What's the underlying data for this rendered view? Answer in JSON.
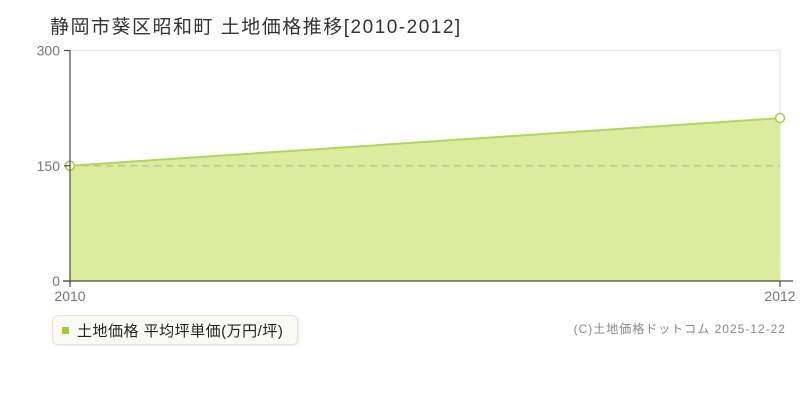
{
  "title": "静岡市葵区昭和町 土地価格推移[2010-2012]",
  "legend": {
    "label": "土地価格 平均坪単価(万円/坪)",
    "swatch_color": "#a6cb2d"
  },
  "copyright": "(C)土地価格ドットコム 2025-12-22",
  "chart_data": {
    "type": "area",
    "title": "静岡市葵区昭和町 土地価格推移[2010-2012]",
    "x": [
      2010,
      2012
    ],
    "series": [
      {
        "name": "土地価格 平均坪単価(万円/坪)",
        "values": [
          150,
          212
        ]
      }
    ],
    "xlabel": "",
    "ylabel": "平均坪単価(万円/坪)",
    "xlim": [
      2010,
      2012
    ],
    "ylim": [
      0,
      300
    ],
    "xticks": [
      2010,
      2012
    ],
    "yticks": [
      0,
      150,
      300
    ],
    "grid": {
      "top_border": true,
      "right_vline_at_x": 2012,
      "dashed_hline_at_y": 150
    },
    "legend_position": "bottom-left",
    "colors": {
      "area_fill": "#dbec9e",
      "line": "#b2d852",
      "marker_fill": "#ffffff",
      "marker_stroke": "#a9cf45",
      "grid_line": "#e9e9e4",
      "dashed_line": "#999999",
      "axis": "#4a4a4a",
      "tick_label": "#777777"
    }
  }
}
